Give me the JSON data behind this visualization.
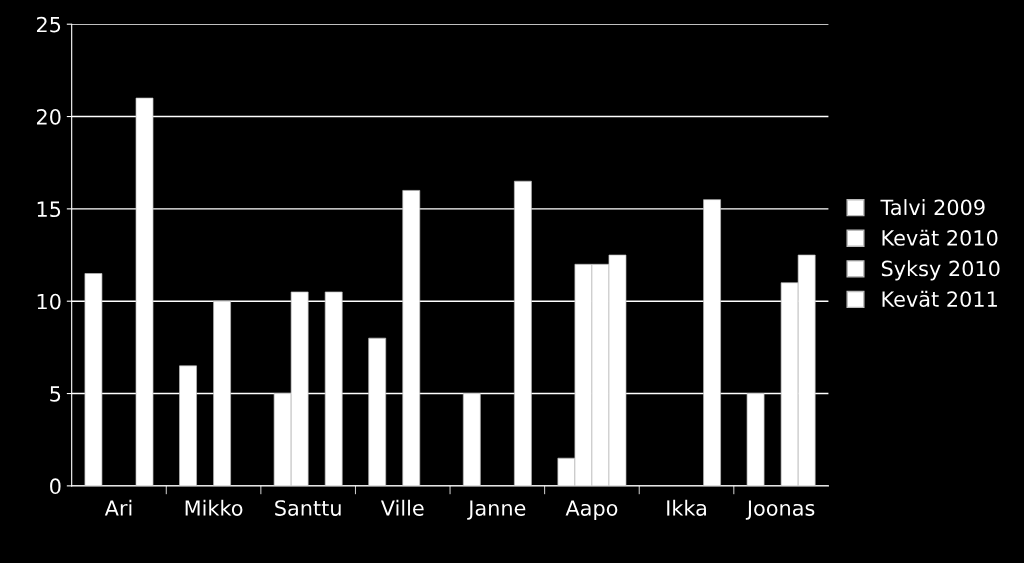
{
  "chart_data": {
    "type": "bar",
    "categories": [
      "Ari",
      "Mikko",
      "Santtu",
      "Ville",
      "Janne",
      "Aapo",
      "Ikka",
      "Joonas"
    ],
    "series": [
      {
        "name": "Talvi 2009",
        "color": "#ffffff",
        "values": [
          11.5,
          6.5,
          5,
          8,
          5,
          1.5,
          null,
          5
        ]
      },
      {
        "name": "Kevät 2010",
        "color": "#ffffff",
        "values": [
          null,
          null,
          10.5,
          null,
          null,
          12,
          null,
          null
        ]
      },
      {
        "name": "Syksy 2010",
        "color": "#ffffff",
        "values": [
          null,
          10,
          null,
          16,
          null,
          12,
          null,
          11
        ]
      },
      {
        "name": "Kevät 2011",
        "color": "#ffffff",
        "values": [
          21,
          null,
          10.5,
          null,
          16.5,
          12.5,
          15.5,
          12.5
        ]
      }
    ],
    "ylim": [
      0,
      25
    ],
    "yticks": [
      0,
      5,
      10,
      15,
      20,
      25
    ],
    "grid": "y",
    "legend": "right"
  }
}
